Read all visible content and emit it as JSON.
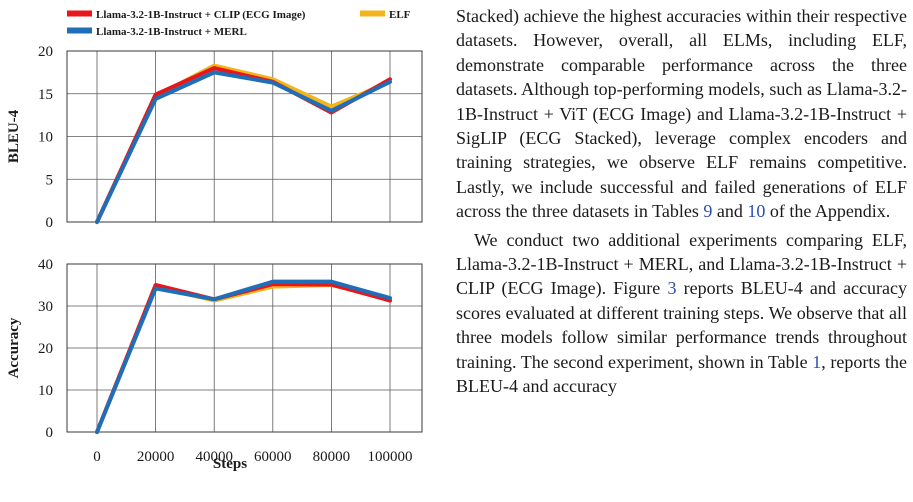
{
  "figure": {
    "legend": [
      {
        "label": "Llama-3.2-1B-Instruct + CLIP (ECG Image)",
        "color": "#e8161b"
      },
      {
        "label": "ELF",
        "color": "#f2b51c"
      },
      {
        "label": "Llama-3.2-1B-Instruct + MERL",
        "color": "#1f6fb8"
      }
    ],
    "xlabel": "Steps"
  },
  "chart_data": [
    {
      "type": "line",
      "ylabel": "BLEU-4",
      "x": [
        0,
        20000,
        40000,
        60000,
        80000,
        100000
      ],
      "ylim": [
        0,
        20
      ],
      "yticks": [
        0,
        5,
        10,
        15,
        20
      ],
      "grid": true,
      "series": [
        {
          "name": "Llama-3.2-1B-Instruct + CLIP (ECG Image)",
          "values": [
            0,
            14.9,
            18.0,
            16.4,
            12.8,
            16.7
          ]
        },
        {
          "name": "ELF",
          "values": [
            0,
            14.7,
            18.3,
            16.7,
            13.5,
            16.4
          ]
        },
        {
          "name": "Llama-3.2-1B-Instruct + MERL",
          "values": [
            0,
            14.4,
            17.5,
            16.3,
            13.0,
            16.4
          ]
        }
      ]
    },
    {
      "type": "line",
      "ylabel": "Accuracy",
      "xlabel": "Steps",
      "x": [
        0,
        20000,
        40000,
        60000,
        80000,
        100000
      ],
      "xticks": [
        "0",
        "20000",
        "40000",
        "60000",
        "80000",
        "100000"
      ],
      "ylim": [
        0,
        40
      ],
      "yticks": [
        0,
        10,
        20,
        30,
        40
      ],
      "grid": true,
      "series": [
        {
          "name": "Llama-3.2-1B-Instruct + CLIP (ECG Image)",
          "values": [
            0,
            35.0,
            31.6,
            35.2,
            35.1,
            31.3
          ]
        },
        {
          "name": "ELF",
          "values": [
            0,
            34.6,
            31.3,
            34.6,
            35.0,
            31.8
          ]
        },
        {
          "name": "Llama-3.2-1B-Instruct + MERL",
          "values": [
            0,
            34.2,
            31.6,
            35.8,
            35.8,
            31.9
          ]
        }
      ]
    }
  ],
  "text": {
    "para1": [
      {
        "t": "Stacked) achieve the highest accuracies within their respective datasets. However, overall, all ELMs, including ELF, demonstrate comparable performance across the three datasets. Although top-performing models, such as Llama-3.2-1B-Instruct + ViT (ECG Image) and Llama-3.2-1B-Instruct + SigLIP (ECG Stacked), leverage complex encoders and training strategies, we observe ELF remains competitive. Lastly, we include successful and failed generations of ELF across the three datasets in Tables "
      },
      {
        "t": "9",
        "ref": true
      },
      {
        "t": " and "
      },
      {
        "t": "10",
        "ref": true
      },
      {
        "t": " of the Appendix."
      }
    ],
    "para2": [
      {
        "t": "We conduct two additional experiments comparing ELF, Llama-3.2-1B-Instruct + MERL, and Llama-3.2-1B-Instruct + CLIP (ECG Image). Figure "
      },
      {
        "t": "3",
        "ref": true
      },
      {
        "t": " reports BLEU-4 and accuracy scores evaluated at different training steps. We observe that all three models follow similar performance trends throughout training. The second experiment, shown in Table "
      },
      {
        "t": "1",
        "ref": true
      },
      {
        "t": ", reports the BLEU-4 and accuracy"
      }
    ]
  }
}
